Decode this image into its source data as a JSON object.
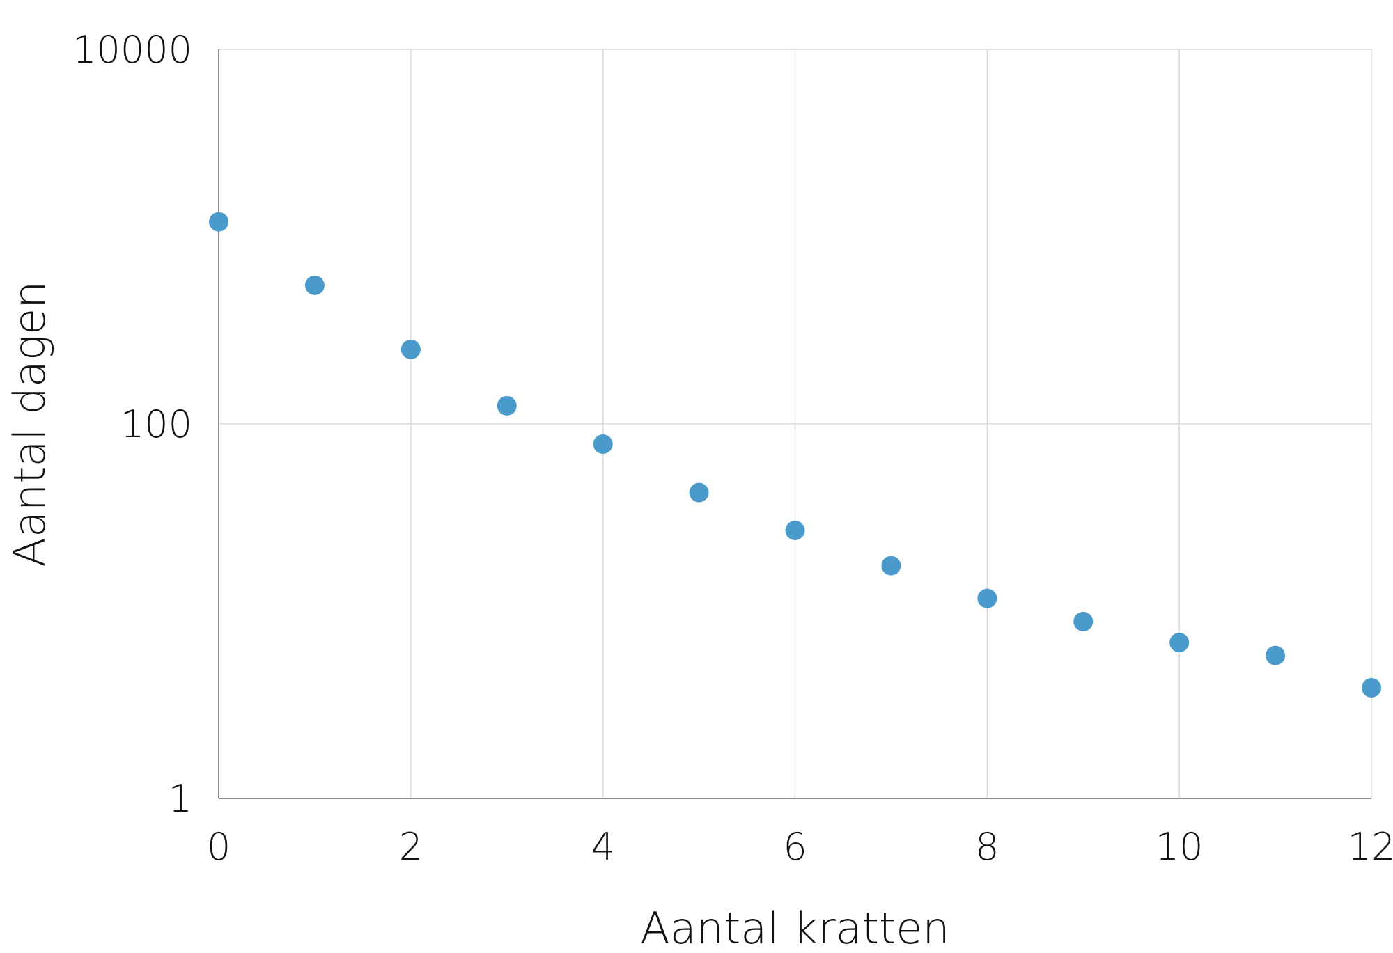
{
  "chart_data": {
    "type": "scatter",
    "title": "",
    "xlabel": "Aantal kratten",
    "ylabel": "Aantal dagen",
    "xlim": [
      0,
      12
    ],
    "ylim": [
      1,
      10000
    ],
    "y_scale": "log",
    "x_ticks": [
      "0",
      "2",
      "4",
      "6",
      "8",
      "10",
      "12"
    ],
    "y_ticks": [
      "1",
      "100",
      "10000"
    ],
    "grid": true,
    "series": [
      {
        "x": [
          0,
          1,
          2,
          3,
          4,
          5,
          6,
          7,
          8,
          9,
          10,
          11,
          12
        ],
        "y": [
          1200,
          550,
          250,
          125,
          78,
          43,
          27,
          17.5,
          11.7,
          8.8,
          6.8,
          5.8,
          3.9
        ]
      }
    ],
    "colors": {
      "points": "#4a9bcc",
      "grid": "#d9d9d9",
      "axis": "#8c8c8c"
    }
  }
}
